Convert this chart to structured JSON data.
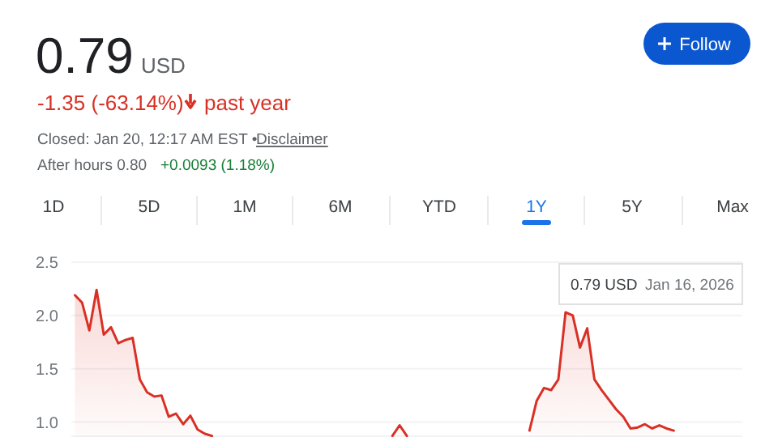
{
  "chart_data": {
    "type": "area",
    "title": "0.79",
    "annotations": [
      "USD",
      "-1.35 (-63.14%)",
      "past year",
      "Closed: Jan 20, 12:17 AM EST •",
      "Disclaimer",
      "After hours 0.80",
      "+0.0093 (1.18%)",
      "Follow",
      "1D",
      "5D",
      "1M",
      "6M",
      "YTD",
      "1Y",
      "5Y",
      "Max",
      "0.79 USD",
      "Jan 16, 2026"
    ],
    "categories": [
      null,
      null,
      null,
      null,
      null,
      null,
      null,
      null,
      null,
      null,
      null,
      null,
      null,
      null,
      null,
      null,
      null,
      null,
      null,
      null,
      null,
      null,
      null,
      null,
      null,
      null,
      null,
      null,
      null,
      null,
      null,
      null,
      null,
      null,
      null,
      null,
      null,
      null,
      null,
      null,
      null,
      null,
      null,
      null,
      null,
      null,
      null,
      null,
      null,
      null,
      null,
      null,
      null,
      null,
      null,
      null,
      null,
      null,
      null,
      null,
      null,
      null,
      null,
      null,
      null,
      null,
      null,
      null,
      null,
      null,
      null,
      null,
      null,
      null,
      null,
      null,
      null,
      null,
      null,
      null,
      null,
      null,
      null,
      null,
      null,
      null,
      null,
      null,
      null,
      null,
      null,
      null,
      null
    ],
    "ylim": [
      0.86,
      2.5
    ],
    "yticks": [
      {
        "value": 1,
        "label": "1.0"
      },
      {
        "value": 1.5,
        "label": "1.5"
      },
      {
        "value": 2,
        "label": "2.0"
      },
      {
        "value": 2.5,
        "label": "2.5"
      }
    ],
    "tick_labels": "y",
    "grid": "y",
    "marker": "none",
    "series": [
      {
        "color": "#d93025",
        "values": [
          2.19,
          2.12,
          1.86,
          2.24,
          1.82,
          1.89,
          1.74,
          1.77,
          1.79,
          1.4,
          1.28,
          1.24,
          1.25,
          1.05,
          1.08,
          0.98,
          1.06,
          0.93,
          0.89,
          0.87,
          null,
          null,
          null,
          null,
          null,
          null,
          null,
          null,
          null,
          null,
          null,
          null,
          null,
          null,
          null,
          null,
          null,
          null,
          null,
          null,
          null,
          null,
          null,
          null,
          0.87,
          0.97,
          0.87,
          null,
          null,
          null,
          null,
          null,
          null,
          null,
          null,
          null,
          null,
          null,
          null,
          null,
          null,
          null,
          null,
          0.92,
          1.2,
          1.32,
          1.3,
          1.4,
          2.03,
          2.0,
          1.7,
          1.88,
          1.4,
          1.3,
          1.21,
          1.12,
          1.05,
          0.94,
          0.95,
          0.98,
          0.94,
          0.97,
          0.94,
          0.92,
          null,
          null,
          null,
          null,
          null,
          null,
          null,
          null,
          null
        ]
      }
    ]
  }
}
